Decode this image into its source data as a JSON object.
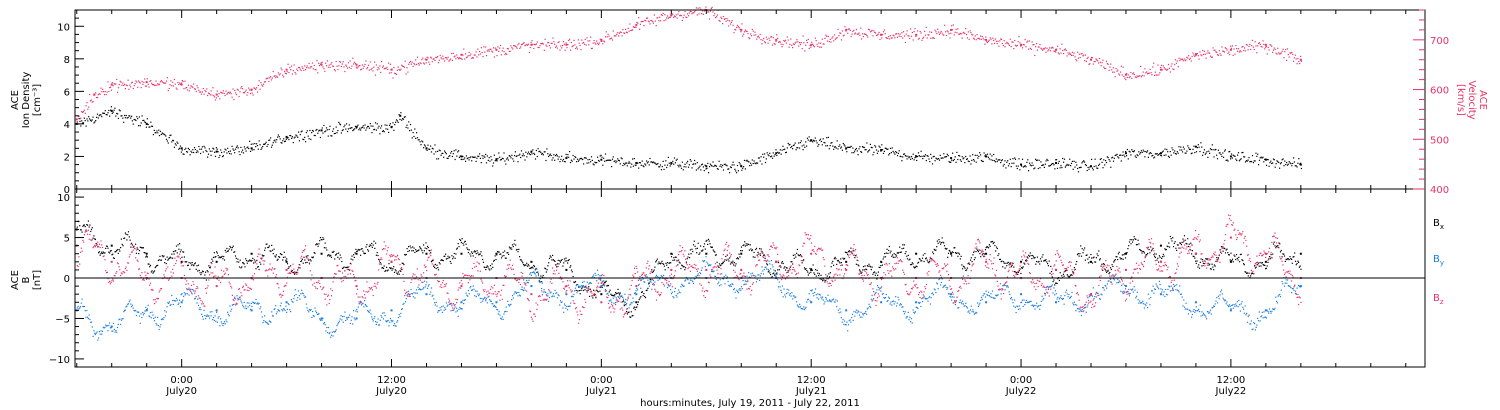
{
  "colors": {
    "black": "#000000",
    "pink": "#e8336a",
    "blue": "#1a7ee0"
  },
  "xaxis": {
    "title": "hours:minutes, July 19, 2011 - July 22, 2011",
    "ticks": [
      {
        "time": "0:00",
        "date": "July20",
        "hour": 24
      },
      {
        "time": "12:00",
        "date": "July20",
        "hour": 36
      },
      {
        "time": "0:00",
        "date": "July21",
        "hour": 48
      },
      {
        "time": "12:00",
        "date": "July21",
        "hour": 60
      },
      {
        "time": "0:00",
        "date": "July22",
        "hour": 72
      },
      {
        "time": "12:00",
        "date": "July22",
        "hour": 84
      }
    ],
    "range_hours": [
      17.9,
      95.1
    ]
  },
  "panel1": {
    "left_label_lines": [
      "ACE",
      "Ion Density",
      "[cm⁻³]"
    ],
    "right_label_lines": [
      "ACE",
      "Velocity",
      "[km/s]"
    ],
    "left_ticks": [
      "0",
      "2",
      "4",
      "6",
      "8",
      "10"
    ],
    "right_ticks": [
      "400",
      "500",
      "600",
      "700"
    ]
  },
  "panel2": {
    "left_label_lines": [
      "ACE",
      "B",
      "[nT]"
    ],
    "left_ticks": [
      "−10",
      "−5",
      "0",
      "5",
      "10"
    ],
    "legend": [
      {
        "label": "B",
        "sub": "x",
        "color": "#000000"
      },
      {
        "label": "B",
        "sub": "y",
        "color": "#1a7ee0"
      },
      {
        "label": "B",
        "sub": "z",
        "color": "#e8336a"
      }
    ]
  },
  "chart_data": [
    {
      "type": "scatter",
      "title": "",
      "xlabel": "hours:minutes, July 19, 2011 - July 22, 2011",
      "ylabel": "ACE Ion Density [cm⁻³]",
      "ylim": [
        0,
        11
      ],
      "y2label": "ACE Velocity [km/s]",
      "y2lim": [
        400,
        760
      ],
      "x_unit": "hours since July 19, 2011 00:00",
      "series": [
        {
          "name": "Ion Density",
          "axis": "left",
          "color": "#000000",
          "x": [
            18,
            20,
            22,
            24,
            26,
            28,
            30,
            32,
            34,
            36,
            36.5,
            38,
            40,
            42,
            44,
            46,
            48,
            50,
            52,
            54,
            56,
            58,
            60,
            62,
            64,
            66,
            68,
            70,
            72,
            74,
            76,
            78,
            80,
            82,
            84,
            86,
            88
          ],
          "values": [
            4.0,
            4.8,
            4.0,
            2.5,
            2.3,
            2.5,
            3.2,
            3.6,
            3.8,
            3.8,
            4.5,
            2.5,
            2.0,
            1.8,
            2.3,
            1.9,
            1.8,
            1.6,
            1.6,
            1.4,
            1.4,
            2.2,
            3.0,
            2.5,
            2.4,
            2.0,
            1.9,
            2.0,
            1.5,
            1.6,
            1.4,
            2.2,
            2.2,
            2.6,
            2.0,
            1.8,
            1.5
          ]
        },
        {
          "name": "Velocity",
          "axis": "right",
          "color": "#e8336a",
          "x": [
            18,
            19,
            20,
            22,
            24,
            26,
            28,
            30,
            32,
            34,
            36,
            38,
            40,
            42,
            44,
            46,
            48,
            50,
            52,
            54,
            56,
            58,
            60,
            62,
            64,
            66,
            68,
            70,
            72,
            74,
            76,
            78,
            80,
            82,
            84,
            86,
            88
          ],
          "values": [
            540,
            590,
            610,
            615,
            610,
            590,
            600,
            640,
            650,
            650,
            640,
            660,
            670,
            680,
            690,
            690,
            700,
            730,
            750,
            760,
            720,
            700,
            690,
            720,
            710,
            710,
            720,
            700,
            690,
            680,
            660,
            630,
            640,
            670,
            680,
            690,
            660
          ]
        }
      ]
    },
    {
      "type": "scatter",
      "title": "",
      "xlabel": "hours:minutes, July 19, 2011 - July 22, 2011",
      "ylabel": "ACE B [nT]",
      "ylim": [
        -11,
        11
      ],
      "x_unit": "hours since July 19, 2011 00:00",
      "series": [
        {
          "name": "Bx",
          "color": "#000000",
          "x": [
            18,
            20,
            22,
            24,
            26,
            28,
            30,
            32,
            34,
            36,
            38,
            40,
            42,
            44,
            46,
            48,
            50,
            52,
            54,
            56,
            58,
            60,
            62,
            64,
            66,
            68,
            70,
            72,
            74,
            76,
            78,
            80,
            82,
            84,
            86,
            88
          ],
          "values": [
            6,
            4,
            3,
            2,
            2,
            3,
            2,
            3,
            3,
            2,
            3,
            3,
            3,
            2,
            1,
            -2,
            -3,
            3,
            3,
            3,
            2,
            1,
            2,
            2,
            3,
            3,
            3,
            2,
            1,
            2,
            3,
            4,
            3,
            2,
            2,
            3
          ]
        },
        {
          "name": "By",
          "color": "#1a7ee0",
          "x": [
            18,
            20,
            22,
            24,
            26,
            28,
            30,
            32,
            34,
            36,
            38,
            40,
            42,
            44,
            46,
            48,
            50,
            52,
            54,
            56,
            58,
            60,
            62,
            64,
            66,
            68,
            70,
            72,
            74,
            76,
            78,
            80,
            82,
            84,
            86,
            88
          ],
          "values": [
            -4,
            -6,
            -4,
            -3,
            -4,
            -4,
            -3,
            -5,
            -5,
            -4,
            -2,
            -3,
            -3,
            -1,
            -2,
            -1,
            -2,
            0,
            0,
            0,
            0,
            -3,
            -4,
            -3,
            -3,
            -2,
            -3,
            -2,
            -3,
            -2,
            -1,
            -2,
            -3,
            -4,
            -4,
            -1
          ]
        },
        {
          "name": "Bz",
          "color": "#e8336a",
          "x": [
            18,
            20,
            22,
            24,
            26,
            28,
            30,
            32,
            34,
            36,
            38,
            40,
            42,
            44,
            46,
            48,
            50,
            52,
            54,
            56,
            58,
            60,
            62,
            64,
            66,
            68,
            70,
            72,
            74,
            76,
            78,
            80,
            82,
            84,
            86,
            88
          ],
          "values": [
            4,
            2,
            0,
            0,
            -1,
            0,
            1,
            0,
            -1,
            2,
            0,
            -1,
            0,
            -2,
            -1,
            -3,
            -1,
            1,
            1,
            1,
            2,
            3,
            1,
            0,
            0,
            0,
            2,
            0,
            1,
            -2,
            1,
            2,
            3,
            5,
            3,
            0
          ]
        }
      ]
    }
  ]
}
